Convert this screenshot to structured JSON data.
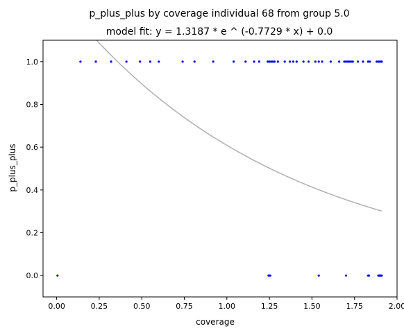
{
  "chart_data": {
    "type": "scatter",
    "title": "p_plus_plus by coverage individual 68 from group 5.0",
    "subtitle": "model fit: y = 1.3187 * e ^ (-0.7729 * x) + 0.0",
    "xlabel": "coverage",
    "ylabel": "p_plus_plus",
    "xlim": [
      -0.08,
      2.0
    ],
    "ylim": [
      -0.1,
      1.1
    ],
    "x_ticks": [
      0.0,
      0.25,
      0.5,
      0.75,
      1.0,
      1.25,
      1.5,
      1.75,
      2.0
    ],
    "x_tick_labels": [
      "0.00",
      "0.25",
      "0.50",
      "0.75",
      "1.00",
      "1.25",
      "1.50",
      "1.75",
      "2.00"
    ],
    "y_ticks": [
      0.0,
      0.2,
      0.4,
      0.6,
      0.8,
      1.0
    ],
    "y_tick_labels": [
      "0.0",
      "0.2",
      "0.4",
      "0.6",
      "0.8",
      "1.0"
    ],
    "grid": false,
    "colors": {
      "points": "#0000ff",
      "fit_line": "#b0b0b0"
    },
    "series": [
      {
        "kind": "points",
        "x": [
          0.14,
          0.23,
          0.32,
          0.41,
          0.49,
          0.55,
          0.6,
          0.74,
          0.81,
          0.92,
          1.04,
          1.11,
          1.16,
          1.19,
          1.24,
          1.25,
          1.26,
          1.27,
          1.28,
          1.3,
          1.34,
          1.37,
          1.39,
          1.41,
          1.45,
          1.48,
          1.52,
          1.54,
          1.56,
          1.61,
          1.66,
          1.69,
          1.7,
          1.71,
          1.72,
          1.73,
          1.74,
          1.77,
          1.8,
          1.83,
          1.84,
          1.88,
          1.89,
          1.9,
          1.905,
          1.91,
          0.005,
          1.245,
          1.25,
          1.255,
          1.54,
          1.7,
          1.83,
          1.835,
          1.89,
          1.895,
          1.9,
          1.905,
          1.91
        ],
        "y": [
          1,
          1,
          1,
          1,
          1,
          1,
          1,
          1,
          1,
          1,
          1,
          1,
          1,
          1,
          1,
          1,
          1,
          1,
          1,
          1,
          1,
          1,
          1,
          1,
          1,
          1,
          1,
          1,
          1,
          1,
          1,
          1,
          1,
          1,
          1,
          1,
          1,
          1,
          1,
          1,
          1,
          1,
          1,
          1,
          1,
          1,
          0,
          0,
          0,
          0,
          0,
          0,
          0,
          0,
          0,
          0,
          0,
          0,
          0
        ]
      },
      {
        "kind": "fit",
        "a": 1.3187,
        "b": -0.7729,
        "c": 0.0,
        "x_range": [
          0.0,
          1.91
        ]
      }
    ]
  }
}
